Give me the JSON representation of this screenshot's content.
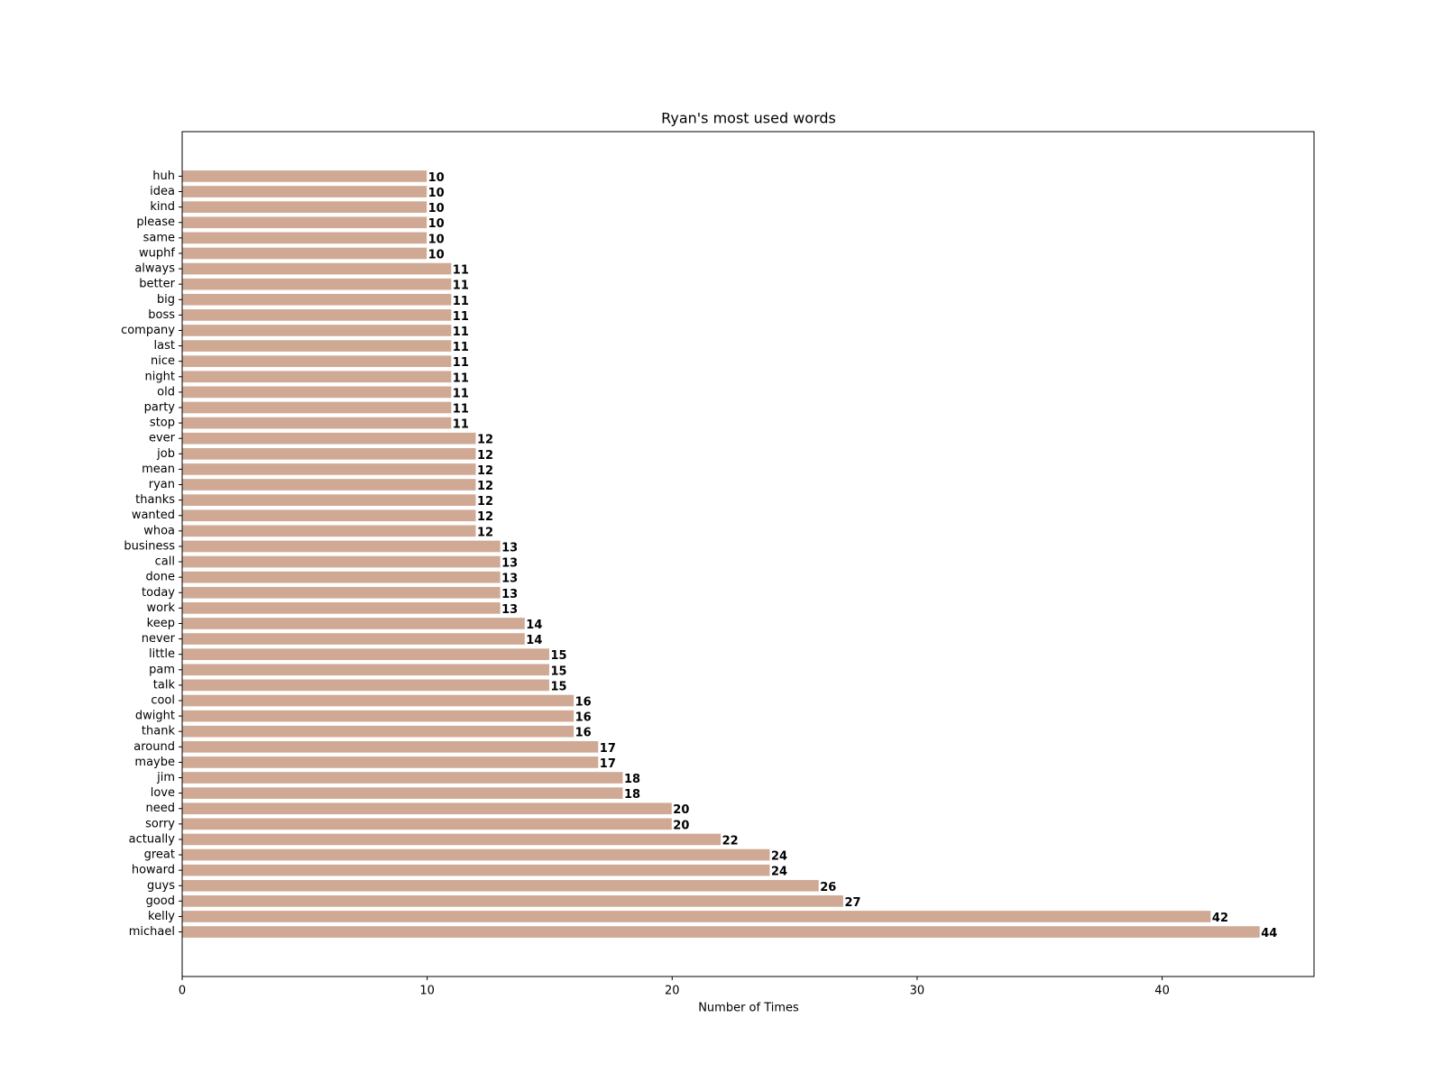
{
  "chart_data": {
    "type": "barh",
    "title": "Ryan's most used words",
    "xlabel": "Number of Times",
    "categories": [
      "huh",
      "idea",
      "kind",
      "please",
      "same",
      "wuphf",
      "always",
      "better",
      "big",
      "boss",
      "company",
      "last",
      "nice",
      "night",
      "old",
      "party",
      "stop",
      "ever",
      "job",
      "mean",
      "ryan",
      "thanks",
      "wanted",
      "whoa",
      "business",
      "call",
      "done",
      "today",
      "work",
      "keep",
      "never",
      "little",
      "pam",
      "talk",
      "cool",
      "dwight",
      "thank",
      "around",
      "maybe",
      "jim",
      "love",
      "need",
      "sorry",
      "actually",
      "great",
      "howard",
      "guys",
      "good",
      "kelly",
      "michael"
    ],
    "values": [
      10,
      10,
      10,
      10,
      10,
      10,
      11,
      11,
      11,
      11,
      11,
      11,
      11,
      11,
      11,
      11,
      11,
      12,
      12,
      12,
      12,
      12,
      12,
      12,
      13,
      13,
      13,
      13,
      13,
      14,
      14,
      15,
      15,
      15,
      16,
      16,
      16,
      17,
      17,
      18,
      18,
      20,
      20,
      22,
      24,
      24,
      26,
      27,
      42,
      44
    ],
    "color": "#d0a994",
    "xlim": [
      0,
      46.2
    ],
    "xticks": [
      0,
      10,
      20,
      30,
      40
    ]
  }
}
